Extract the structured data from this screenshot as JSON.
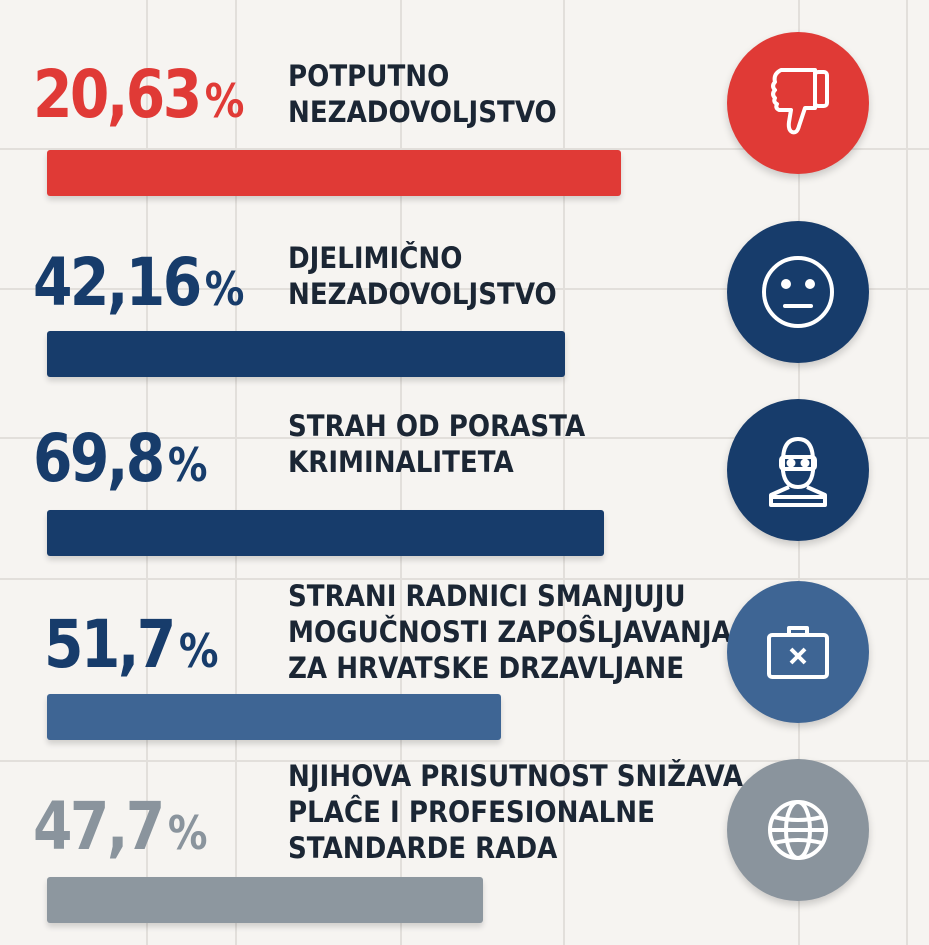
{
  "chart_data": {
    "type": "bar",
    "orientation": "horizontal",
    "unit": "%",
    "items": [
      {
        "value": "20,63",
        "number": 20.63,
        "label_lines": [
          "POTPUTNO",
          "NEZADOVOLJSTVO"
        ],
        "icon": "thumbs-down-icon",
        "color": "#e03a36"
      },
      {
        "value": "42,16",
        "number": 42.16,
        "label_lines": [
          "DJELIMIČNO",
          "NEZADOVOLJSTVO"
        ],
        "icon": "neutral-face-icon",
        "color": "#173c6b"
      },
      {
        "value": "69,8",
        "number": 69.8,
        "label_lines": [
          "STRAH OD PORASTA",
          "KRIMINALITETA"
        ],
        "icon": "burglar-icon",
        "color": "#173c6b"
      },
      {
        "value": "51,7",
        "number": 51.7,
        "label_lines": [
          "STRANI RADNICI SMANJUJU",
          "MOGUČNOSTI ZAPOŜLJAVANJA",
          "ZA HRVATSKE DRZAVLJANE"
        ],
        "icon": "briefcase-x-icon",
        "color": "#3e6594"
      },
      {
        "value": "47,7",
        "number": 47.7,
        "label_lines": [
          "NJIHOVA PRISUTNOST SNIŽAVA",
          "PLAĈE I PROFESIONALNE",
          "STANDARDE RADA"
        ],
        "icon": "globe-icon",
        "color": "#8a949d"
      }
    ],
    "percent_sign": "%"
  }
}
